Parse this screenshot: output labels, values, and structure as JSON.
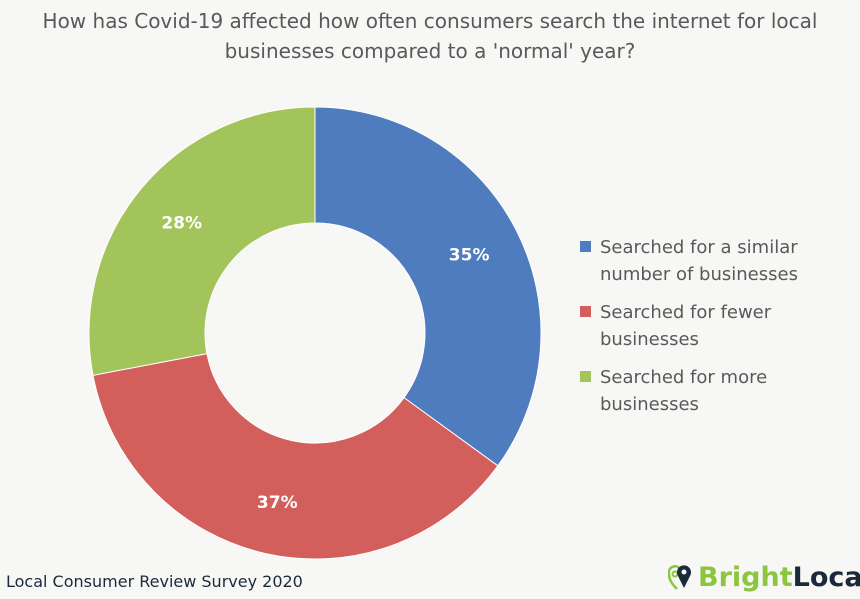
{
  "chart_data": {
    "type": "pie",
    "donut": true,
    "title": "How has Covid-19 affected how often consumers search the internet for local businesses compared to a 'normal' year?",
    "categories": [
      "Searched for a similar number of businesses",
      "Searched for fewer businesses",
      "Searched for more businesses"
    ],
    "values": [
      35,
      37,
      28
    ],
    "labels": [
      "35%",
      "37%",
      "28%"
    ],
    "colors": [
      "#4f7bbf",
      "#d35f5c",
      "#a3c45a"
    ],
    "legend_position": "right"
  },
  "footer": "Local Consumer Review Survey 2020",
  "logo": {
    "part1": "Bright",
    "part2": "Local"
  }
}
